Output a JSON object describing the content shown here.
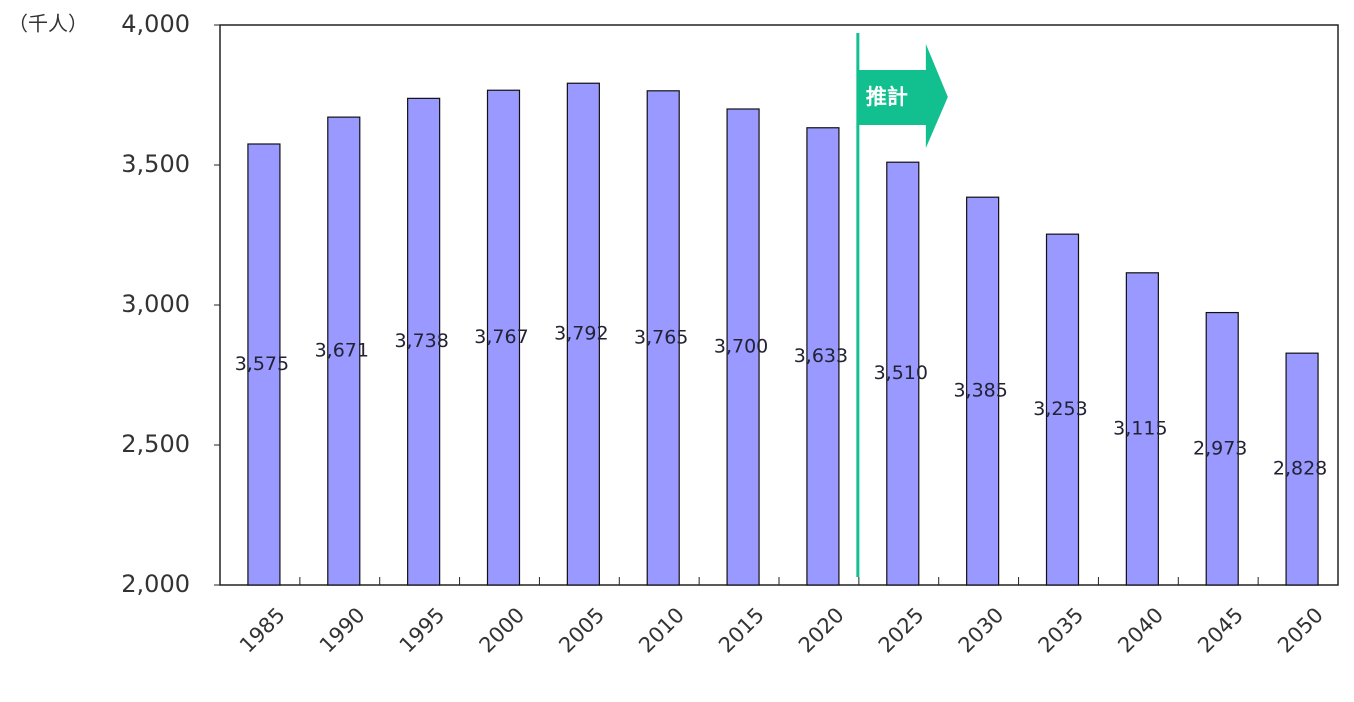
{
  "chart_data": {
    "type": "bar",
    "y_label": "（千人）",
    "categories": [
      "1985",
      "1990",
      "1995",
      "2000",
      "2005",
      "2010",
      "2015",
      "2020",
      "2025",
      "2030",
      "2035",
      "2040",
      "2045",
      "2050"
    ],
    "values": [
      3575,
      3671,
      3738,
      3767,
      3792,
      3765,
      3700,
      3633,
      3510,
      3385,
      3253,
      3115,
      2973,
      2828
    ],
    "value_labels": [
      "3,575",
      "3,671",
      "3,738",
      "3,767",
      "3,792",
      "3,765",
      "3,700",
      "3,633",
      "3,510",
      "3,385",
      "3,253",
      "3,115",
      "2,973",
      "2,828"
    ],
    "color": "#9999ff",
    "ylim": [
      2000,
      4000
    ],
    "yticks": [
      {
        "value": 2000,
        "label": "2,000"
      },
      {
        "value": 2500,
        "label": "2,500"
      },
      {
        "value": 3000,
        "label": "3,000"
      },
      {
        "value": 3500,
        "label": "3,500"
      },
      {
        "value": 4000,
        "label": "4,000"
      }
    ],
    "annotation": "推計"
  }
}
